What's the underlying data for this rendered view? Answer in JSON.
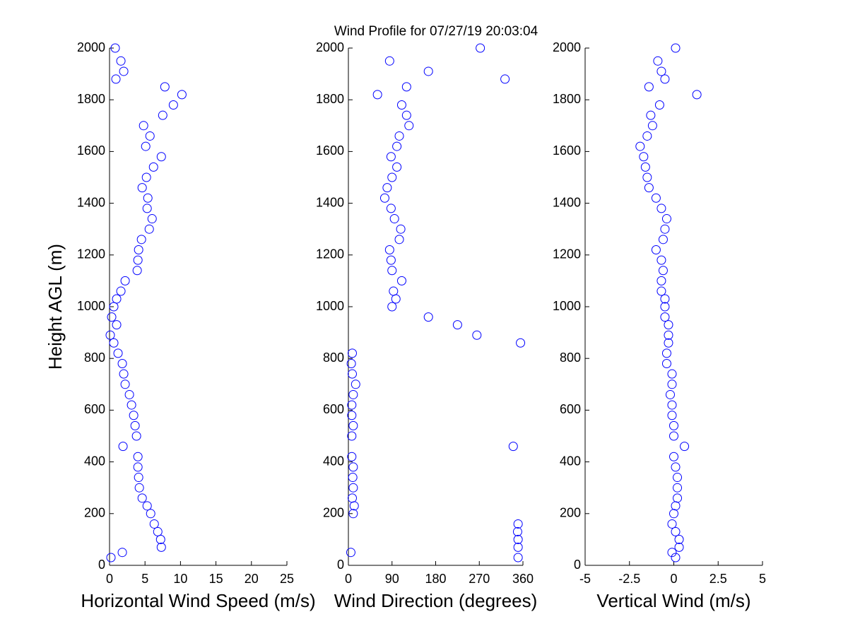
{
  "chart_data": [
    {
      "type": "scatter",
      "title": "Wind Profile for  07/27/19 20:03:04",
      "xlabel": "Horizontal Wind Speed (m/s)",
      "ylabel": "Height AGL (m)",
      "color": "#0000ff",
      "xlim": [
        0,
        25
      ],
      "xticks": [
        0,
        5,
        10,
        15,
        20,
        25
      ],
      "ylim": [
        0,
        2000
      ],
      "yticks": [
        0,
        200,
        400,
        600,
        800,
        1000,
        1200,
        1400,
        1600,
        1800,
        2000
      ],
      "x": [
        0.2,
        1.8,
        7.3,
        7.2,
        6.8,
        6.3,
        5.8,
        5.3,
        4.6,
        4.2,
        4.1,
        4.0,
        4.0,
        1.9,
        3.8,
        3.6,
        3.4,
        3.1,
        2.8,
        2.2,
        2.0,
        1.8,
        1.2,
        0.6,
        0.1,
        1.0,
        0.3,
        0.6,
        1.0,
        1.6,
        2.2,
        3.9,
        4.0,
        4.1,
        4.5,
        5.6,
        6.0,
        5.3,
        5.4,
        4.6,
        5.2,
        6.2,
        7.3,
        5.1,
        5.7,
        4.8,
        7.5,
        9.0,
        10.2,
        7.8,
        0.9,
        2.0,
        1.6,
        0.8
      ],
      "y": [
        30,
        50,
        70,
        100,
        130,
        160,
        200,
        230,
        260,
        300,
        340,
        380,
        420,
        460,
        500,
        540,
        580,
        620,
        660,
        700,
        740,
        780,
        820,
        860,
        890,
        930,
        960,
        1000,
        1030,
        1060,
        1100,
        1140,
        1180,
        1220,
        1260,
        1300,
        1340,
        1380,
        1420,
        1460,
        1500,
        1540,
        1580,
        1620,
        1660,
        1700,
        1740,
        1780,
        1820,
        1850,
        1880,
        1910,
        1950,
        2000
      ]
    },
    {
      "type": "scatter",
      "xlabel": "Wind Direction (degrees)",
      "color": "#0000ff",
      "xlim": [
        0,
        360
      ],
      "xticks": [
        0,
        90,
        180,
        270,
        360
      ],
      "ylim": [
        0,
        2000
      ],
      "yticks": [
        0,
        200,
        400,
        600,
        800,
        1000,
        1200,
        1400,
        1600,
        1800,
        2000
      ],
      "x": [
        350,
        5,
        350,
        350,
        349,
        350,
        10,
        12,
        8,
        10,
        9,
        10,
        7,
        340,
        7,
        10,
        7,
        7,
        10,
        15,
        8,
        6,
        8,
        355,
        265,
        225,
        165,
        90,
        98,
        93,
        110,
        90,
        88,
        85,
        105,
        108,
        95,
        88,
        75,
        80,
        90,
        100,
        88,
        100,
        105,
        125,
        120,
        110,
        60,
        120,
        323,
        165,
        85,
        272
      ],
      "y": [
        30,
        50,
        70,
        100,
        130,
        160,
        200,
        230,
        260,
        300,
        340,
        380,
        420,
        460,
        500,
        540,
        580,
        620,
        660,
        700,
        740,
        780,
        820,
        860,
        890,
        930,
        960,
        1000,
        1030,
        1060,
        1100,
        1140,
        1180,
        1220,
        1260,
        1300,
        1340,
        1380,
        1420,
        1460,
        1500,
        1540,
        1580,
        1620,
        1660,
        1700,
        1740,
        1780,
        1820,
        1850,
        1880,
        1910,
        1950,
        2000
      ]
    },
    {
      "type": "scatter",
      "xlabel": "Vertical Wind (m/s)",
      "color": "#0000ff",
      "xlim": [
        -5,
        5
      ],
      "xticks": [
        -5,
        -2.5,
        0,
        2.5,
        5
      ],
      "ylim": [
        0,
        2000
      ],
      "yticks": [
        0,
        200,
        400,
        600,
        800,
        1000,
        1200,
        1400,
        1600,
        1800,
        2000
      ],
      "x": [
        0.1,
        -0.1,
        0.3,
        0.3,
        0.1,
        -0.1,
        0.0,
        0.1,
        0.2,
        0.2,
        0.2,
        0.1,
        0.0,
        0.6,
        0.0,
        0.0,
        -0.1,
        -0.1,
        -0.2,
        -0.1,
        -0.1,
        -0.4,
        -0.4,
        -0.3,
        -0.3,
        -0.3,
        -0.5,
        -0.5,
        -0.5,
        -0.7,
        -0.7,
        -0.6,
        -0.7,
        -1.0,
        -0.6,
        -0.5,
        -0.4,
        -0.7,
        -1.0,
        -1.4,
        -1.5,
        -1.6,
        -1.7,
        -1.9,
        -1.5,
        -1.2,
        -1.3,
        -0.8,
        1.3,
        -1.4,
        -0.5,
        -0.7,
        -0.9,
        0.1
      ],
      "y": [
        30,
        50,
        70,
        100,
        130,
        160,
        200,
        230,
        260,
        300,
        340,
        380,
        420,
        460,
        500,
        540,
        580,
        620,
        660,
        700,
        740,
        780,
        820,
        860,
        890,
        930,
        960,
        1000,
        1030,
        1060,
        1100,
        1140,
        1180,
        1220,
        1260,
        1300,
        1340,
        1380,
        1420,
        1460,
        1500,
        1540,
        1580,
        1620,
        1660,
        1700,
        1740,
        1780,
        1820,
        1850,
        1880,
        1910,
        1950,
        2000
      ]
    }
  ]
}
